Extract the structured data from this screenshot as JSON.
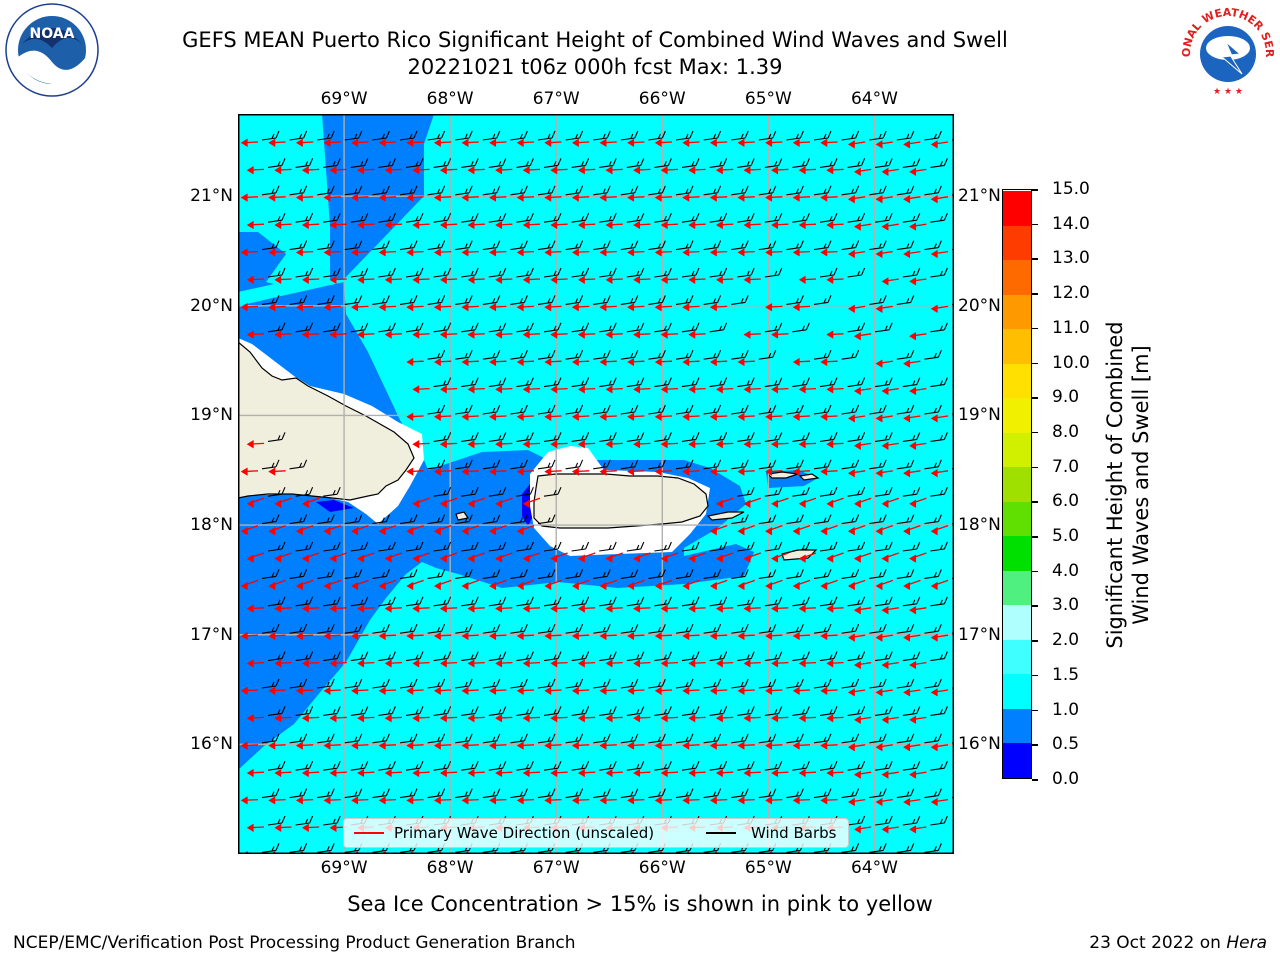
{
  "header": {
    "title_line1": "GEFS MEAN Puerto Rico Significant Height of Combined Wind Waves and Swell",
    "title_line2": "20221021 t06z 000h fcst   Max: 1.39"
  },
  "logos": {
    "left": {
      "name": "noaa-logo",
      "text": "NOAA"
    },
    "right": {
      "name": "nws-logo",
      "text": "NATIONAL WEATHER SERVICE"
    }
  },
  "map": {
    "lon_ticks": [
      "69°W",
      "68°W",
      "67°W",
      "66°W",
      "65°W",
      "64°W"
    ],
    "lat_ticks": [
      "21°N",
      "20°N",
      "19°N",
      "18°N",
      "17°N",
      "16°N"
    ],
    "extent": {
      "lon": [
        -70.0,
        -63.25
      ],
      "lat": [
        15.0,
        21.75
      ]
    },
    "colors": {
      "ocean_low": "#00ffff",
      "ocean_mid": "#0080ff",
      "ocean_deep": "#0000ff",
      "land": "#f0eedc",
      "barb": "#000000",
      "arrow": "#ff0000",
      "grid": "#b0b0b0"
    }
  },
  "legend": {
    "wave_direction": "Primary Wave Direction (unscaled)",
    "wind_barbs": "Wind Barbs",
    "wave_color": "#ff0000",
    "barb_color": "#000000"
  },
  "colorbar": {
    "label_line1": "Significant Height of Combined",
    "label_line2": "Wind Waves and Swell [m]",
    "ticks": [
      "0.0",
      "0.5",
      "1.0",
      "1.5",
      "2.0",
      "3.0",
      "4.0",
      "5.0",
      "6.0",
      "7.0",
      "8.0",
      "9.0",
      "10.0",
      "11.0",
      "12.0",
      "13.0",
      "14.0",
      "15.0"
    ],
    "colors": [
      "#0000ff",
      "#0080ff",
      "#00ffff",
      "#40ffff",
      "#b0ffff",
      "#50f080",
      "#00e000",
      "#60e000",
      "#a0e000",
      "#d0f000",
      "#f0f000",
      "#ffe000",
      "#ffbe00",
      "#ff9900",
      "#ff6a00",
      "#ff3c00",
      "#ff0000"
    ]
  },
  "footer": {
    "note": "Sea Ice Concentration > 15% is shown in pink to yellow",
    "left": "NCEP/EMC/Verification Post Processing Product Generation Branch",
    "date": "23 Oct 2022 on ",
    "machine": "Hera"
  }
}
